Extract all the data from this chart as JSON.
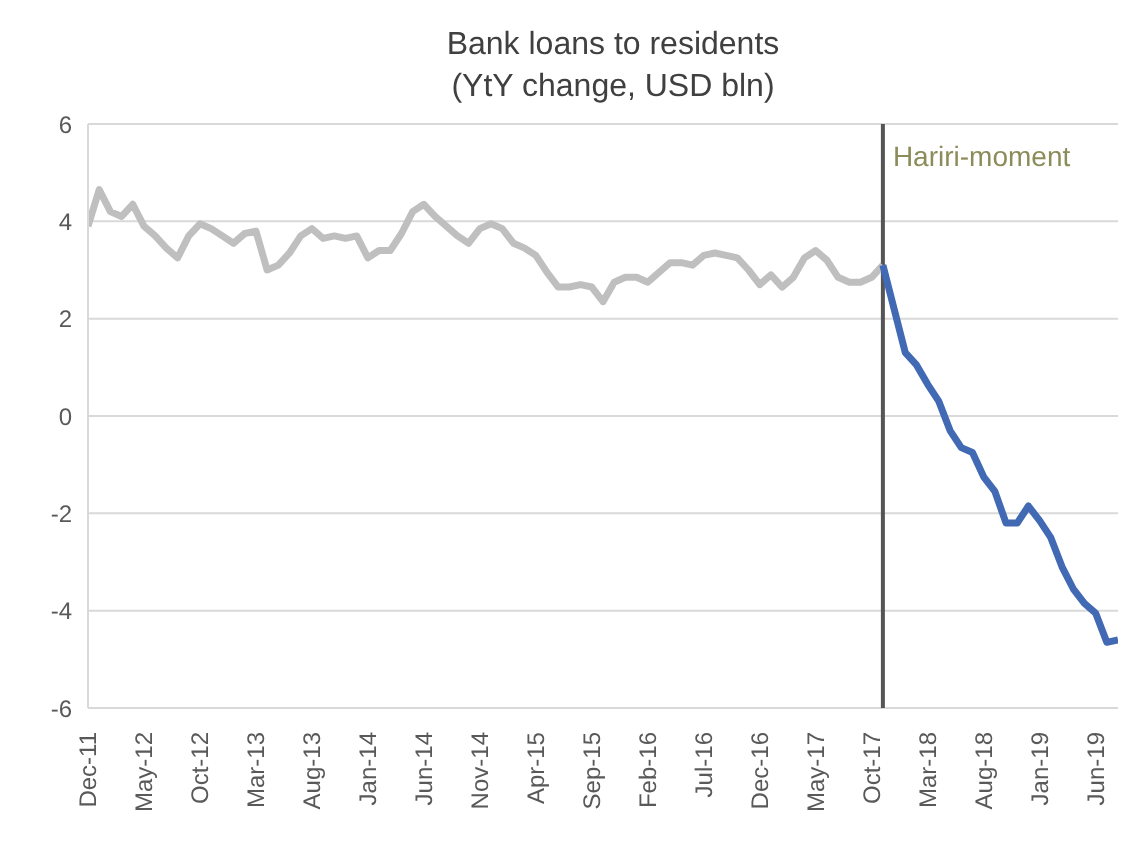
{
  "chart_data": {
    "type": "line",
    "title": "Bank loans to residents",
    "subtitle": "(YtY change, USD bln)",
    "x": [
      "2011-12",
      "2012-01",
      "2012-02",
      "2012-03",
      "2012-04",
      "2012-05",
      "2012-06",
      "2012-07",
      "2012-08",
      "2012-09",
      "2012-10",
      "2012-11",
      "2012-12",
      "2013-01",
      "2013-02",
      "2013-03",
      "2013-04",
      "2013-05",
      "2013-06",
      "2013-07",
      "2013-08",
      "2013-09",
      "2013-10",
      "2013-11",
      "2013-12",
      "2014-01",
      "2014-02",
      "2014-03",
      "2014-04",
      "2014-05",
      "2014-06",
      "2014-07",
      "2014-08",
      "2014-09",
      "2014-10",
      "2014-11",
      "2014-12",
      "2015-01",
      "2015-02",
      "2015-03",
      "2015-04",
      "2015-05",
      "2015-06",
      "2015-07",
      "2015-08",
      "2015-09",
      "2015-10",
      "2015-11",
      "2015-12",
      "2016-01",
      "2016-02",
      "2016-03",
      "2016-04",
      "2016-05",
      "2016-06",
      "2016-07",
      "2016-08",
      "2016-09",
      "2016-10",
      "2016-11",
      "2016-12",
      "2017-01",
      "2017-02",
      "2017-03",
      "2017-04",
      "2017-05",
      "2017-06",
      "2017-07",
      "2017-08",
      "2017-09",
      "2017-10",
      "2017-11",
      "2017-12",
      "2018-01",
      "2018-02",
      "2018-03",
      "2018-04",
      "2018-05",
      "2018-06",
      "2018-07",
      "2018-08",
      "2018-09",
      "2018-10",
      "2018-11",
      "2018-12",
      "2019-01",
      "2019-02",
      "2019-03",
      "2019-04",
      "2019-05",
      "2019-06",
      "2019-07",
      "2019-08"
    ],
    "series": [
      {
        "color": "#bfbfbf",
        "values": [
          3.9,
          4.65,
          4.2,
          4.1,
          4.35,
          3.9,
          3.7,
          3.45,
          3.25,
          3.7,
          3.95,
          3.85,
          3.7,
          3.55,
          3.75,
          3.8,
          3.0,
          3.1,
          3.35,
          3.7,
          3.85,
          3.65,
          3.7,
          3.65,
          3.7,
          3.25,
          3.4,
          3.4,
          3.75,
          4.2,
          4.35,
          4.1,
          3.9,
          3.7,
          3.55,
          3.85,
          3.95,
          3.85,
          3.55,
          3.45,
          3.3,
          2.95,
          2.65,
          2.65,
          2.7,
          2.65,
          2.35,
          2.75,
          2.85,
          2.85,
          2.75,
          2.95,
          3.15,
          3.15,
          3.1,
          3.3,
          3.35,
          3.3,
          3.25,
          3.0,
          2.7,
          2.9,
          2.65,
          2.85,
          3.25,
          3.4,
          3.2,
          2.85,
          2.75,
          2.75,
          2.85,
          3.1,
          null,
          null,
          null,
          null,
          null,
          null,
          null,
          null,
          null,
          null,
          null,
          null,
          null,
          null,
          null,
          null,
          null,
          null,
          null,
          null,
          null
        ]
      },
      {
        "color": "#4169b4",
        "values": [
          null,
          null,
          null,
          null,
          null,
          null,
          null,
          null,
          null,
          null,
          null,
          null,
          null,
          null,
          null,
          null,
          null,
          null,
          null,
          null,
          null,
          null,
          null,
          null,
          null,
          null,
          null,
          null,
          null,
          null,
          null,
          null,
          null,
          null,
          null,
          null,
          null,
          null,
          null,
          null,
          null,
          null,
          null,
          null,
          null,
          null,
          null,
          null,
          null,
          null,
          null,
          null,
          null,
          null,
          null,
          null,
          null,
          null,
          null,
          null,
          null,
          null,
          null,
          null,
          null,
          null,
          null,
          null,
          null,
          null,
          null,
          3.1,
          2.2,
          1.3,
          1.05,
          0.65,
          0.3,
          -0.3,
          -0.65,
          -0.75,
          -1.25,
          -1.55,
          -2.2,
          -2.2,
          -1.85,
          -2.15,
          -2.5,
          -3.1,
          -3.55,
          -3.85,
          -4.05,
          -4.65,
          -4.6
        ]
      }
    ],
    "xlim": [
      "2011-12",
      "2019-08"
    ],
    "xticks": [
      {
        "value": "2011-12",
        "label": "Dec-11"
      },
      {
        "value": "2012-05",
        "label": "May-12"
      },
      {
        "value": "2012-10",
        "label": "Oct-12"
      },
      {
        "value": "2013-03",
        "label": "Mar-13"
      },
      {
        "value": "2013-08",
        "label": "Aug-13"
      },
      {
        "value": "2014-01",
        "label": "Jan-14"
      },
      {
        "value": "2014-06",
        "label": "Jun-14"
      },
      {
        "value": "2014-11",
        "label": "Nov-14"
      },
      {
        "value": "2015-04",
        "label": "Apr-15"
      },
      {
        "value": "2015-09",
        "label": "Sep-15"
      },
      {
        "value": "2016-02",
        "label": "Feb-16"
      },
      {
        "value": "2016-07",
        "label": "Jul-16"
      },
      {
        "value": "2016-12",
        "label": "Dec-16"
      },
      {
        "value": "2017-05",
        "label": "May-17"
      },
      {
        "value": "2017-10",
        "label": "Oct-17"
      },
      {
        "value": "2018-03",
        "label": "Mar-18"
      },
      {
        "value": "2018-08",
        "label": "Aug-18"
      },
      {
        "value": "2019-01",
        "label": "Jan-19"
      },
      {
        "value": "2019-06",
        "label": "Jun-19"
      }
    ],
    "ylim": [
      -6,
      6
    ],
    "yticks": [
      -6,
      -4,
      -2,
      0,
      2,
      4,
      6
    ],
    "grid": "y",
    "marker": "none",
    "line_style": "solid",
    "ref_lines": [
      {
        "axis": "x",
        "value": "2017-11",
        "label": "Hariri-moment",
        "color": "#555555"
      }
    ]
  }
}
